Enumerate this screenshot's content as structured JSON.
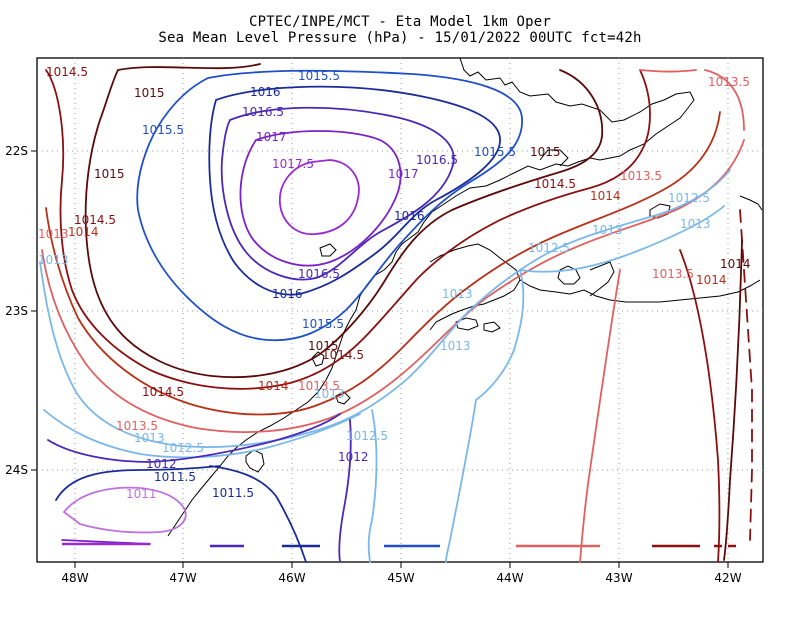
{
  "title": {
    "line1": "CPTEC/INPE/MCT -  Eta Model 1km Oper",
    "line2": "Sea Mean Level Pressure (hPa) - 15/01/2022 00UTC fct=42h"
  },
  "axes": {
    "x_ticks": [
      "48W",
      "47W",
      "46W",
      "45W",
      "44W",
      "43W",
      "42W"
    ],
    "y_ticks": [
      "22S",
      "23S",
      "24S"
    ]
  },
  "contour_labels": [
    {
      "text": "1014.5",
      "color": "#8b1010"
    },
    {
      "text": "1015",
      "color": "#5a0a0a"
    },
    {
      "text": "1015.5",
      "color": "#1f4fc8"
    },
    {
      "text": "1016",
      "color": "#1a2c9a"
    },
    {
      "text": "1016.5",
      "color": "#4a28b8"
    },
    {
      "text": "1017",
      "color": "#7a22c8"
    },
    {
      "text": "1017.5",
      "color": "#9a2ad0"
    },
    {
      "text": "1016.5",
      "color": "#4a28b8"
    },
    {
      "text": "1017",
      "color": "#7a22c8"
    },
    {
      "text": "1015.5",
      "color": "#1f4fc8"
    },
    {
      "text": "1015",
      "color": "#5a0a0a"
    },
    {
      "text": "1014.5",
      "color": "#8b1010"
    },
    {
      "text": "1014",
      "color": "#b83018"
    },
    {
      "text": "1013.5",
      "color": "#e06060"
    },
    {
      "text": "1013.5",
      "color": "#e06060"
    },
    {
      "text": "1015",
      "color": "#5a0a0a"
    },
    {
      "text": "1015.5",
      "color": "#1f4fc8"
    },
    {
      "text": "1014.5",
      "color": "#8b1010"
    },
    {
      "text": "1013",
      "color": "#e06060"
    },
    {
      "text": "1014",
      "color": "#b83018"
    },
    {
      "text": "1013",
      "color": "#7ab8ea"
    },
    {
      "text": "1016",
      "color": "#1a2c9a"
    },
    {
      "text": "1016.5",
      "color": "#4a28b8"
    },
    {
      "text": "1016",
      "color": "#1a2c9a"
    },
    {
      "text": "1015.5",
      "color": "#1f4fc8"
    },
    {
      "text": "1015",
      "color": "#5a0a0a"
    },
    {
      "text": "1014.5",
      "color": "#8b1010"
    },
    {
      "text": "1012.5",
      "color": "#7ab8ea"
    },
    {
      "text": "1013",
      "color": "#7ab8ea"
    },
    {
      "text": "1012.5",
      "color": "#7ab8ea"
    },
    {
      "text": "1013",
      "color": "#7ab8ea"
    },
    {
      "text": "1013.5",
      "color": "#e06060"
    },
    {
      "text": "1014",
      "color": "#b83018"
    },
    {
      "text": "1014",
      "color": "#5a0a0a"
    },
    {
      "text": "1013",
      "color": "#7ab8ea"
    },
    {
      "text": "1013",
      "color": "#7ab8ea"
    },
    {
      "text": "1014.5",
      "color": "#8b1010"
    },
    {
      "text": "1014",
      "color": "#b83018"
    },
    {
      "text": "1013.5",
      "color": "#e06060"
    },
    {
      "text": "1013",
      "color": "#7ab8ea"
    },
    {
      "text": "1013.5",
      "color": "#e06060"
    },
    {
      "text": "1013",
      "color": "#7ab8ea"
    },
    {
      "text": "1012.5",
      "color": "#7ab8ea"
    },
    {
      "text": "1012",
      "color": "#4a28b8"
    },
    {
      "text": "1011.5",
      "color": "#1a2c9a"
    },
    {
      "text": "1011",
      "color": "#c070e0"
    },
    {
      "text": "1011.5",
      "color": "#1a2c9a"
    },
    {
      "text": "1012.5",
      "color": "#7ab8ea"
    },
    {
      "text": "1012",
      "color": "#4a28b8"
    }
  ]
}
